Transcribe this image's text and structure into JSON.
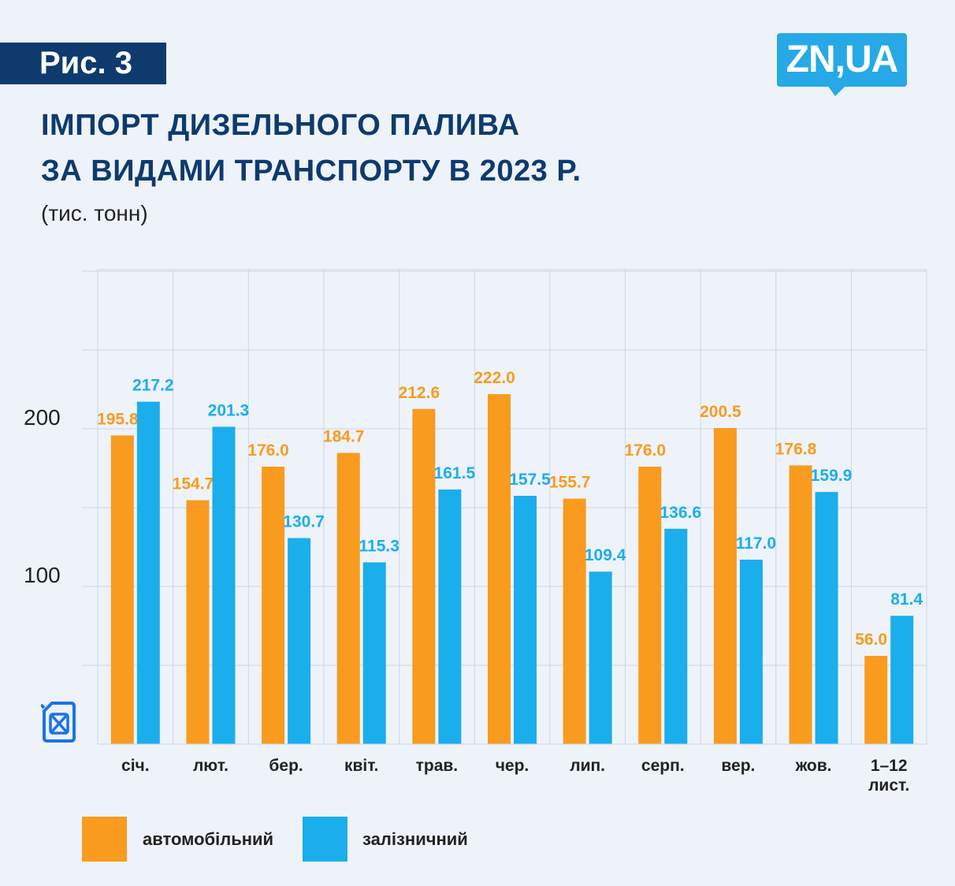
{
  "figure_label": "Рис. 3",
  "logo_text": "ZN,UA",
  "title_line1": "ІМПОРТ ДИЗЕЛЬНОГО ПАЛИВА",
  "title_line2": "ЗА ВИДАМИ ТРАНСПОРТУ В 2023 Р.",
  "unit_label": "(тис. тонн)",
  "colors": {
    "auto": "#f89b1f",
    "rail": "#1aaeec",
    "title": "#0e3a6e",
    "grid": "#ccd5e3"
  },
  "chart_data": {
    "type": "bar",
    "title": "ІМПОРТ ДИЗЕЛЬНОГО ПАЛИВА ЗА ВИДАМИ ТРАНСПОРТУ В 2023 Р.",
    "ylabel": "(тис. тонн)",
    "ylim": [
      0,
      300
    ],
    "yticks": [
      100,
      200
    ],
    "grid": true,
    "legend_position": "bottom",
    "categories": [
      "січ.",
      "лют.",
      "бер.",
      "квіт.",
      "трав.",
      "чер.",
      "лип.",
      "серп.",
      "вер.",
      "жов.",
      "1–12 лист."
    ],
    "series": [
      {
        "name": "автомобільний",
        "color": "#f89b1f",
        "values": [
          195.8,
          154.7,
          176.0,
          184.7,
          212.6,
          222.0,
          155.7,
          176.0,
          200.5,
          176.8,
          56.0
        ]
      },
      {
        "name": "залізничний",
        "color": "#1aaeec",
        "values": [
          217.2,
          201.3,
          130.7,
          115.3,
          161.5,
          157.5,
          109.4,
          136.6,
          117.0,
          159.9,
          81.4
        ]
      }
    ]
  },
  "legend": {
    "auto_label": "автомобільний",
    "rail_label": "залізничний"
  }
}
